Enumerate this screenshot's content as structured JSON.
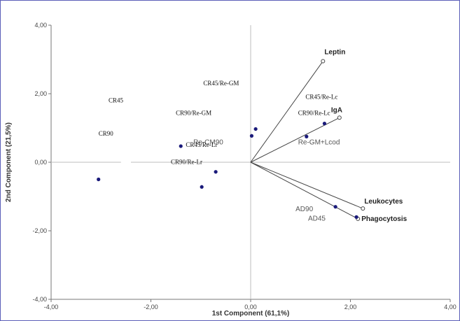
{
  "chart_data": {
    "type": "scatter",
    "title": "",
    "xlabel": "1st Component (61,1%)",
    "ylabel": "2nd Component (21,5%)",
    "xlim": [
      -4,
      4
    ],
    "ylim": [
      -4,
      4
    ],
    "xticks": [
      "-4,00",
      "-2,00",
      "0,00",
      "2,00",
      "4,00"
    ],
    "yticks": [
      "4,00",
      "2,00",
      "0,00",
      "-2,00",
      "-4,00"
    ],
    "grid": false,
    "scores": [
      {
        "label": "CR90",
        "x": -3.05,
        "y": -0.5
      },
      {
        "label": "CR45",
        "x": -1.4,
        "y": 0.47
      },
      {
        "label": "CR45/Re-GM",
        "x": 0.1,
        "y": 0.97
      },
      {
        "label": "CR90/Re-GM",
        "x": 0.02,
        "y": 0.77
      },
      {
        "label": "CR45/Re-Lr",
        "x": -0.7,
        "y": -0.28
      },
      {
        "label": "CR90/Re-Lr",
        "x": -0.98,
        "y": -0.72
      },
      {
        "label": "CR90/Re-Lc",
        "x": 1.48,
        "y": 1.13
      },
      {
        "label": "Re-GM+Lcod",
        "x": 1.12,
        "y": 0.75
      },
      {
        "label": "AD90",
        "x": 1.7,
        "y": -1.3
      },
      {
        "label": "AD45",
        "x": 2.12,
        "y": -1.6
      }
    ],
    "loadings": [
      {
        "label": "Leptin",
        "x": 1.45,
        "y": 2.95
      },
      {
        "label": "IgA",
        "x": 1.78,
        "y": 1.3
      },
      {
        "label": "Leukocytes",
        "x": 2.25,
        "y": -1.35
      },
      {
        "label": "Phagocytosis",
        "x": 2.15,
        "y": -1.65
      }
    ],
    "annotations": [
      {
        "text": "CR90",
        "x": -3.05,
        "y": 0.78
      },
      {
        "text": "CR45",
        "x": -2.85,
        "y": 1.75,
        "family": "serif",
        "anchor": "start",
        "dx": 0
      },
      {
        "text": "CR45/Re-GM",
        "x": -0.95,
        "y": 2.25
      },
      {
        "text": "CR90/Re-GM",
        "x": -1.5,
        "y": 1.38
      },
      {
        "text": "CR45/Re-Lc",
        "x": 1.1,
        "y": 1.85
      },
      {
        "text": "CR90/Re-Lc",
        "x": 0.95,
        "y": 1.38
      },
      {
        "text": "Re-CM90",
        "x": -1.15,
        "y": 0.52
      },
      {
        "text": "CR45/Re-Lr",
        "x": -1.3,
        "y": 0.45
      },
      {
        "text": "CR90/Re-Lr",
        "x": -1.6,
        "y": -0.05
      },
      {
        "text": "Re-GM+Lcod",
        "x": 0.95,
        "y": 0.52
      },
      {
        "text": "AD90",
        "x": 0.9,
        "y": -1.43
      },
      {
        "text": "AD45",
        "x": 1.15,
        "y": -1.7
      }
    ]
  }
}
